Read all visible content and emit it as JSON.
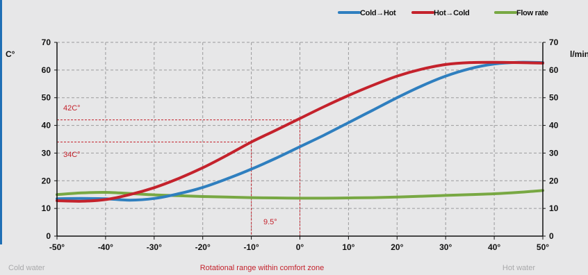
{
  "chart_data": {
    "type": "line",
    "ylabel": "C°",
    "y2label": "l/min",
    "ylim": [
      0,
      70
    ],
    "xlim": [
      -50,
      50
    ],
    "y_ticks": [
      "0",
      "10",
      "20",
      "30",
      "40",
      "50",
      "60",
      "70"
    ],
    "x_ticks": [
      {
        "value": -50,
        "label": "-50°"
      },
      {
        "value": -40,
        "label": "-40°"
      },
      {
        "value": -30,
        "label": "-30°"
      },
      {
        "value": -20,
        "label": "-20°"
      },
      {
        "value": -10,
        "label": "-10°"
      },
      {
        "value": 0,
        "label": "0°"
      },
      {
        "value": 10,
        "label": "10°"
      },
      {
        "value": 20,
        "label": "20°"
      },
      {
        "value": 30,
        "label": "30°"
      },
      {
        "value": 40,
        "label": "40°"
      },
      {
        "value": 50,
        "label": "50°"
      }
    ],
    "grid": true,
    "legend_position": "top-right",
    "series": [
      {
        "name": "Cold→Hot",
        "color": "#2f7fbf",
        "points": [
          [
            -50,
            13.5
          ],
          [
            -45,
            13.6
          ],
          [
            -40,
            13.5
          ],
          [
            -35,
            13.0
          ],
          [
            -30,
            13.6
          ],
          [
            -25,
            15.3
          ],
          [
            -20,
            17.6
          ],
          [
            -15,
            20.7
          ],
          [
            -10,
            24.2
          ],
          [
            -5,
            28.1
          ],
          [
            0,
            32.3
          ],
          [
            5,
            36.5
          ],
          [
            10,
            41.0
          ],
          [
            15,
            45.5
          ],
          [
            20,
            50.0
          ],
          [
            25,
            54.2
          ],
          [
            30,
            57.8
          ],
          [
            35,
            60.5
          ],
          [
            40,
            62.2
          ],
          [
            45,
            62.8
          ],
          [
            50,
            62.7
          ]
        ]
      },
      {
        "name": "Hot→Cold",
        "color": "#c4222c",
        "points": [
          [
            -50,
            12.8
          ],
          [
            -45,
            12.6
          ],
          [
            -40,
            13.2
          ],
          [
            -35,
            15.0
          ],
          [
            -30,
            17.5
          ],
          [
            -25,
            20.8
          ],
          [
            -20,
            24.7
          ],
          [
            -15,
            29.2
          ],
          [
            -10,
            34.0
          ],
          [
            -5,
            38.2
          ],
          [
            0,
            42.5
          ],
          [
            5,
            46.8
          ],
          [
            10,
            50.8
          ],
          [
            15,
            54.5
          ],
          [
            20,
            57.8
          ],
          [
            25,
            60.3
          ],
          [
            30,
            62.0
          ],
          [
            35,
            62.7
          ],
          [
            40,
            62.8
          ],
          [
            45,
            62.7
          ],
          [
            50,
            62.5
          ]
        ]
      },
      {
        "name": "Flow rate",
        "color": "#78a843",
        "points": [
          [
            -50,
            15.0
          ],
          [
            -45,
            15.6
          ],
          [
            -40,
            15.8
          ],
          [
            -35,
            15.4
          ],
          [
            -30,
            14.9
          ],
          [
            -25,
            14.6
          ],
          [
            -20,
            14.3
          ],
          [
            -15,
            14.1
          ],
          [
            -10,
            13.9
          ],
          [
            -5,
            13.8
          ],
          [
            0,
            13.7
          ],
          [
            5,
            13.7
          ],
          [
            10,
            13.8
          ],
          [
            15,
            13.9
          ],
          [
            20,
            14.1
          ],
          [
            25,
            14.4
          ],
          [
            30,
            14.7
          ],
          [
            35,
            15.0
          ],
          [
            40,
            15.3
          ],
          [
            45,
            15.8
          ],
          [
            50,
            16.5
          ]
        ]
      }
    ],
    "annotations": {
      "upper_temp_label": "42C°",
      "lower_temp_label": "34C°",
      "range_label": "9.5°",
      "upper_temp": 42,
      "lower_temp": 34,
      "marker_x_left": -10,
      "marker_x_right": 0,
      "color": "#c4222c"
    },
    "captions": {
      "left": "Cold water",
      "center": "Rotational range within comfort zone",
      "right": "Hot water"
    }
  }
}
